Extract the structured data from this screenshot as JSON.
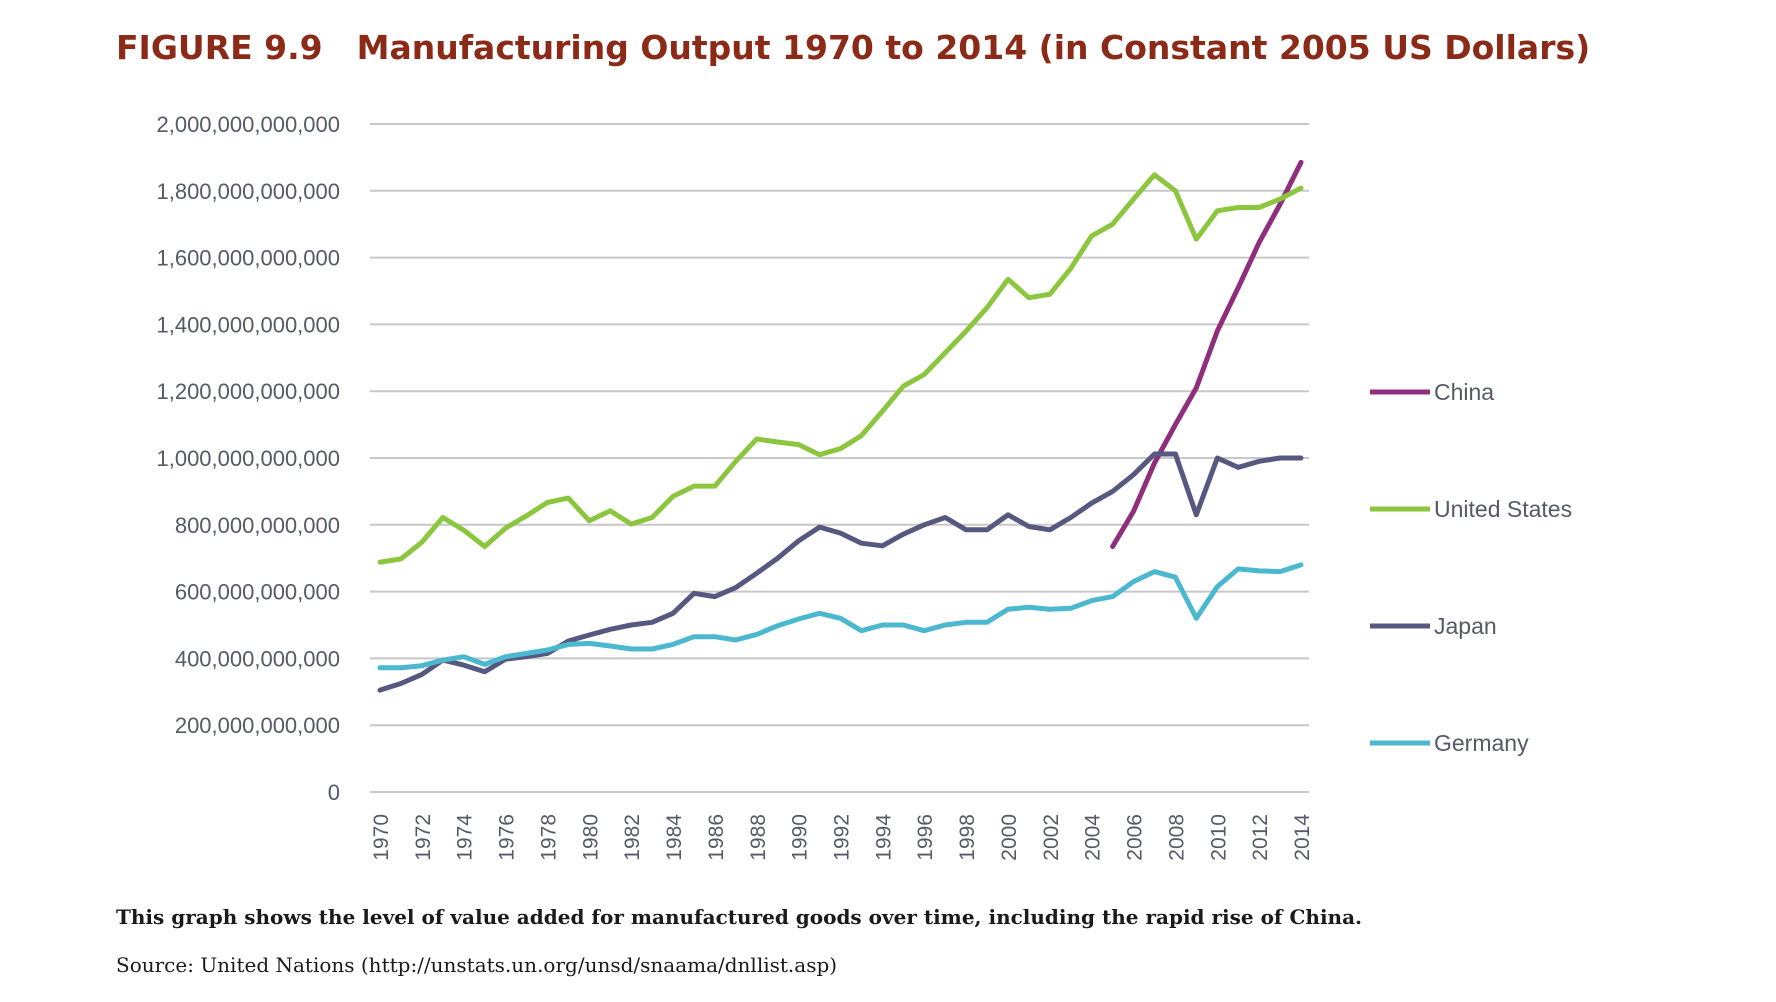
{
  "figure": {
    "number": "FIGURE 9.9",
    "title": "Manufacturing Output 1970 to 2014 (in Constant 2005 US Dollars)",
    "caption": "This graph shows the level of value added for manufactured goods over time, including the rapid rise of China.",
    "source": "Source: United Nations (http://unstats.un.org/unsd/snaama/dnllist.asp)"
  },
  "colors": {
    "title": "#8b2a17",
    "grid": "#c8c8c8",
    "axis_text": "#555a66"
  },
  "chart_data": {
    "type": "line",
    "title": "Manufacturing Output 1970 to 2014 (in Constant 2005 US Dollars)",
    "xlabel": "",
    "ylabel": "",
    "grid": true,
    "legend_position": "right",
    "ylim": [
      0,
      2000000000000
    ],
    "y_ticks": [
      0,
      200000000000,
      400000000000,
      600000000000,
      800000000000,
      1000000000000,
      1200000000000,
      1400000000000,
      1600000000000,
      1800000000000,
      2000000000000
    ],
    "y_tick_labels": [
      "0",
      "200,000,000,000",
      "400,000,000,000",
      "600,000,000,000",
      "800,000,000,000",
      "1,000,000,000,000",
      "1,200,000,000,000",
      "1,400,000,000,000",
      "1,600,000,000,000",
      "1,800,000,000,000",
      "2,000,000,000,000"
    ],
    "x": [
      1970,
      1971,
      1972,
      1973,
      1974,
      1975,
      1976,
      1977,
      1978,
      1979,
      1980,
      1981,
      1982,
      1983,
      1984,
      1985,
      1986,
      1987,
      1988,
      1989,
      1990,
      1991,
      1992,
      1993,
      1994,
      1995,
      1996,
      1997,
      1998,
      1999,
      2000,
      2001,
      2002,
      2003,
      2004,
      2005,
      2006,
      2007,
      2008,
      2009,
      2010,
      2011,
      2012,
      2013,
      2014
    ],
    "x_tick_labels": [
      "1970",
      "1972",
      "1974",
      "1976",
      "1978",
      "1980",
      "1982",
      "1984",
      "1986",
      "1988",
      "1990",
      "1992",
      "1994",
      "1996",
      "1998",
      "2000",
      "2002",
      "2004",
      "2006",
      "2008",
      "2010",
      "2012",
      "2014"
    ],
    "series": [
      {
        "name": "China",
        "color": "#8e2e7c",
        "values": [
          null,
          null,
          null,
          null,
          null,
          null,
          null,
          null,
          null,
          null,
          null,
          null,
          null,
          null,
          null,
          null,
          null,
          null,
          null,
          null,
          null,
          null,
          null,
          null,
          null,
          null,
          null,
          null,
          null,
          null,
          null,
          null,
          null,
          null,
          null,
          735000000000,
          840000000000,
          985000000000,
          1100000000000,
          1210000000000,
          1380000000000,
          1510000000000,
          1645000000000,
          1760000000000,
          1885000000000
        ]
      },
      {
        "name": "United States",
        "color": "#8cc63f",
        "values": [
          688000000000,
          698000000000,
          748000000000,
          822000000000,
          784000000000,
          735000000000,
          790000000000,
          827000000000,
          867000000000,
          880000000000,
          812000000000,
          842000000000,
          802000000000,
          822000000000,
          885000000000,
          916000000000,
          916000000000,
          990000000000,
          1057000000000,
          1048000000000,
          1040000000000,
          1010000000000,
          1028000000000,
          1067000000000,
          1140000000000,
          1215000000000,
          1250000000000,
          1315000000000,
          1380000000000,
          1450000000000,
          1535000000000,
          1480000000000,
          1490000000000,
          1568000000000,
          1665000000000,
          1700000000000,
          1775000000000,
          1848000000000,
          1800000000000,
          1655000000000,
          1740000000000,
          1750000000000,
          1750000000000,
          1775000000000,
          1808000000000
        ]
      },
      {
        "name": "Japan",
        "color": "#56587f",
        "values": [
          305000000000,
          325000000000,
          352000000000,
          395000000000,
          380000000000,
          360000000000,
          398000000000,
          405000000000,
          415000000000,
          452000000000,
          470000000000,
          487000000000,
          500000000000,
          508000000000,
          535000000000,
          595000000000,
          585000000000,
          612000000000,
          655000000000,
          700000000000,
          752000000000,
          793000000000,
          775000000000,
          745000000000,
          737000000000,
          772000000000,
          800000000000,
          822000000000,
          785000000000,
          785000000000,
          830000000000,
          795000000000,
          785000000000,
          822000000000,
          865000000000,
          900000000000,
          950000000000,
          1012000000000,
          1012000000000,
          830000000000,
          1000000000000,
          972000000000,
          990000000000,
          1000000000000,
          1000000000000
        ]
      },
      {
        "name": "Germany",
        "color": "#4cb8d0",
        "values": [
          372000000000,
          372000000000,
          378000000000,
          395000000000,
          405000000000,
          382000000000,
          405000000000,
          415000000000,
          425000000000,
          442000000000,
          445000000000,
          437000000000,
          428000000000,
          428000000000,
          442000000000,
          465000000000,
          465000000000,
          455000000000,
          472000000000,
          498000000000,
          518000000000,
          535000000000,
          520000000000,
          483000000000,
          500000000000,
          500000000000,
          483000000000,
          500000000000,
          508000000000,
          508000000000,
          547000000000,
          553000000000,
          547000000000,
          550000000000,
          573000000000,
          585000000000,
          630000000000,
          660000000000,
          643000000000,
          520000000000,
          615000000000,
          668000000000,
          662000000000,
          660000000000,
          680000000000
        ]
      }
    ]
  }
}
